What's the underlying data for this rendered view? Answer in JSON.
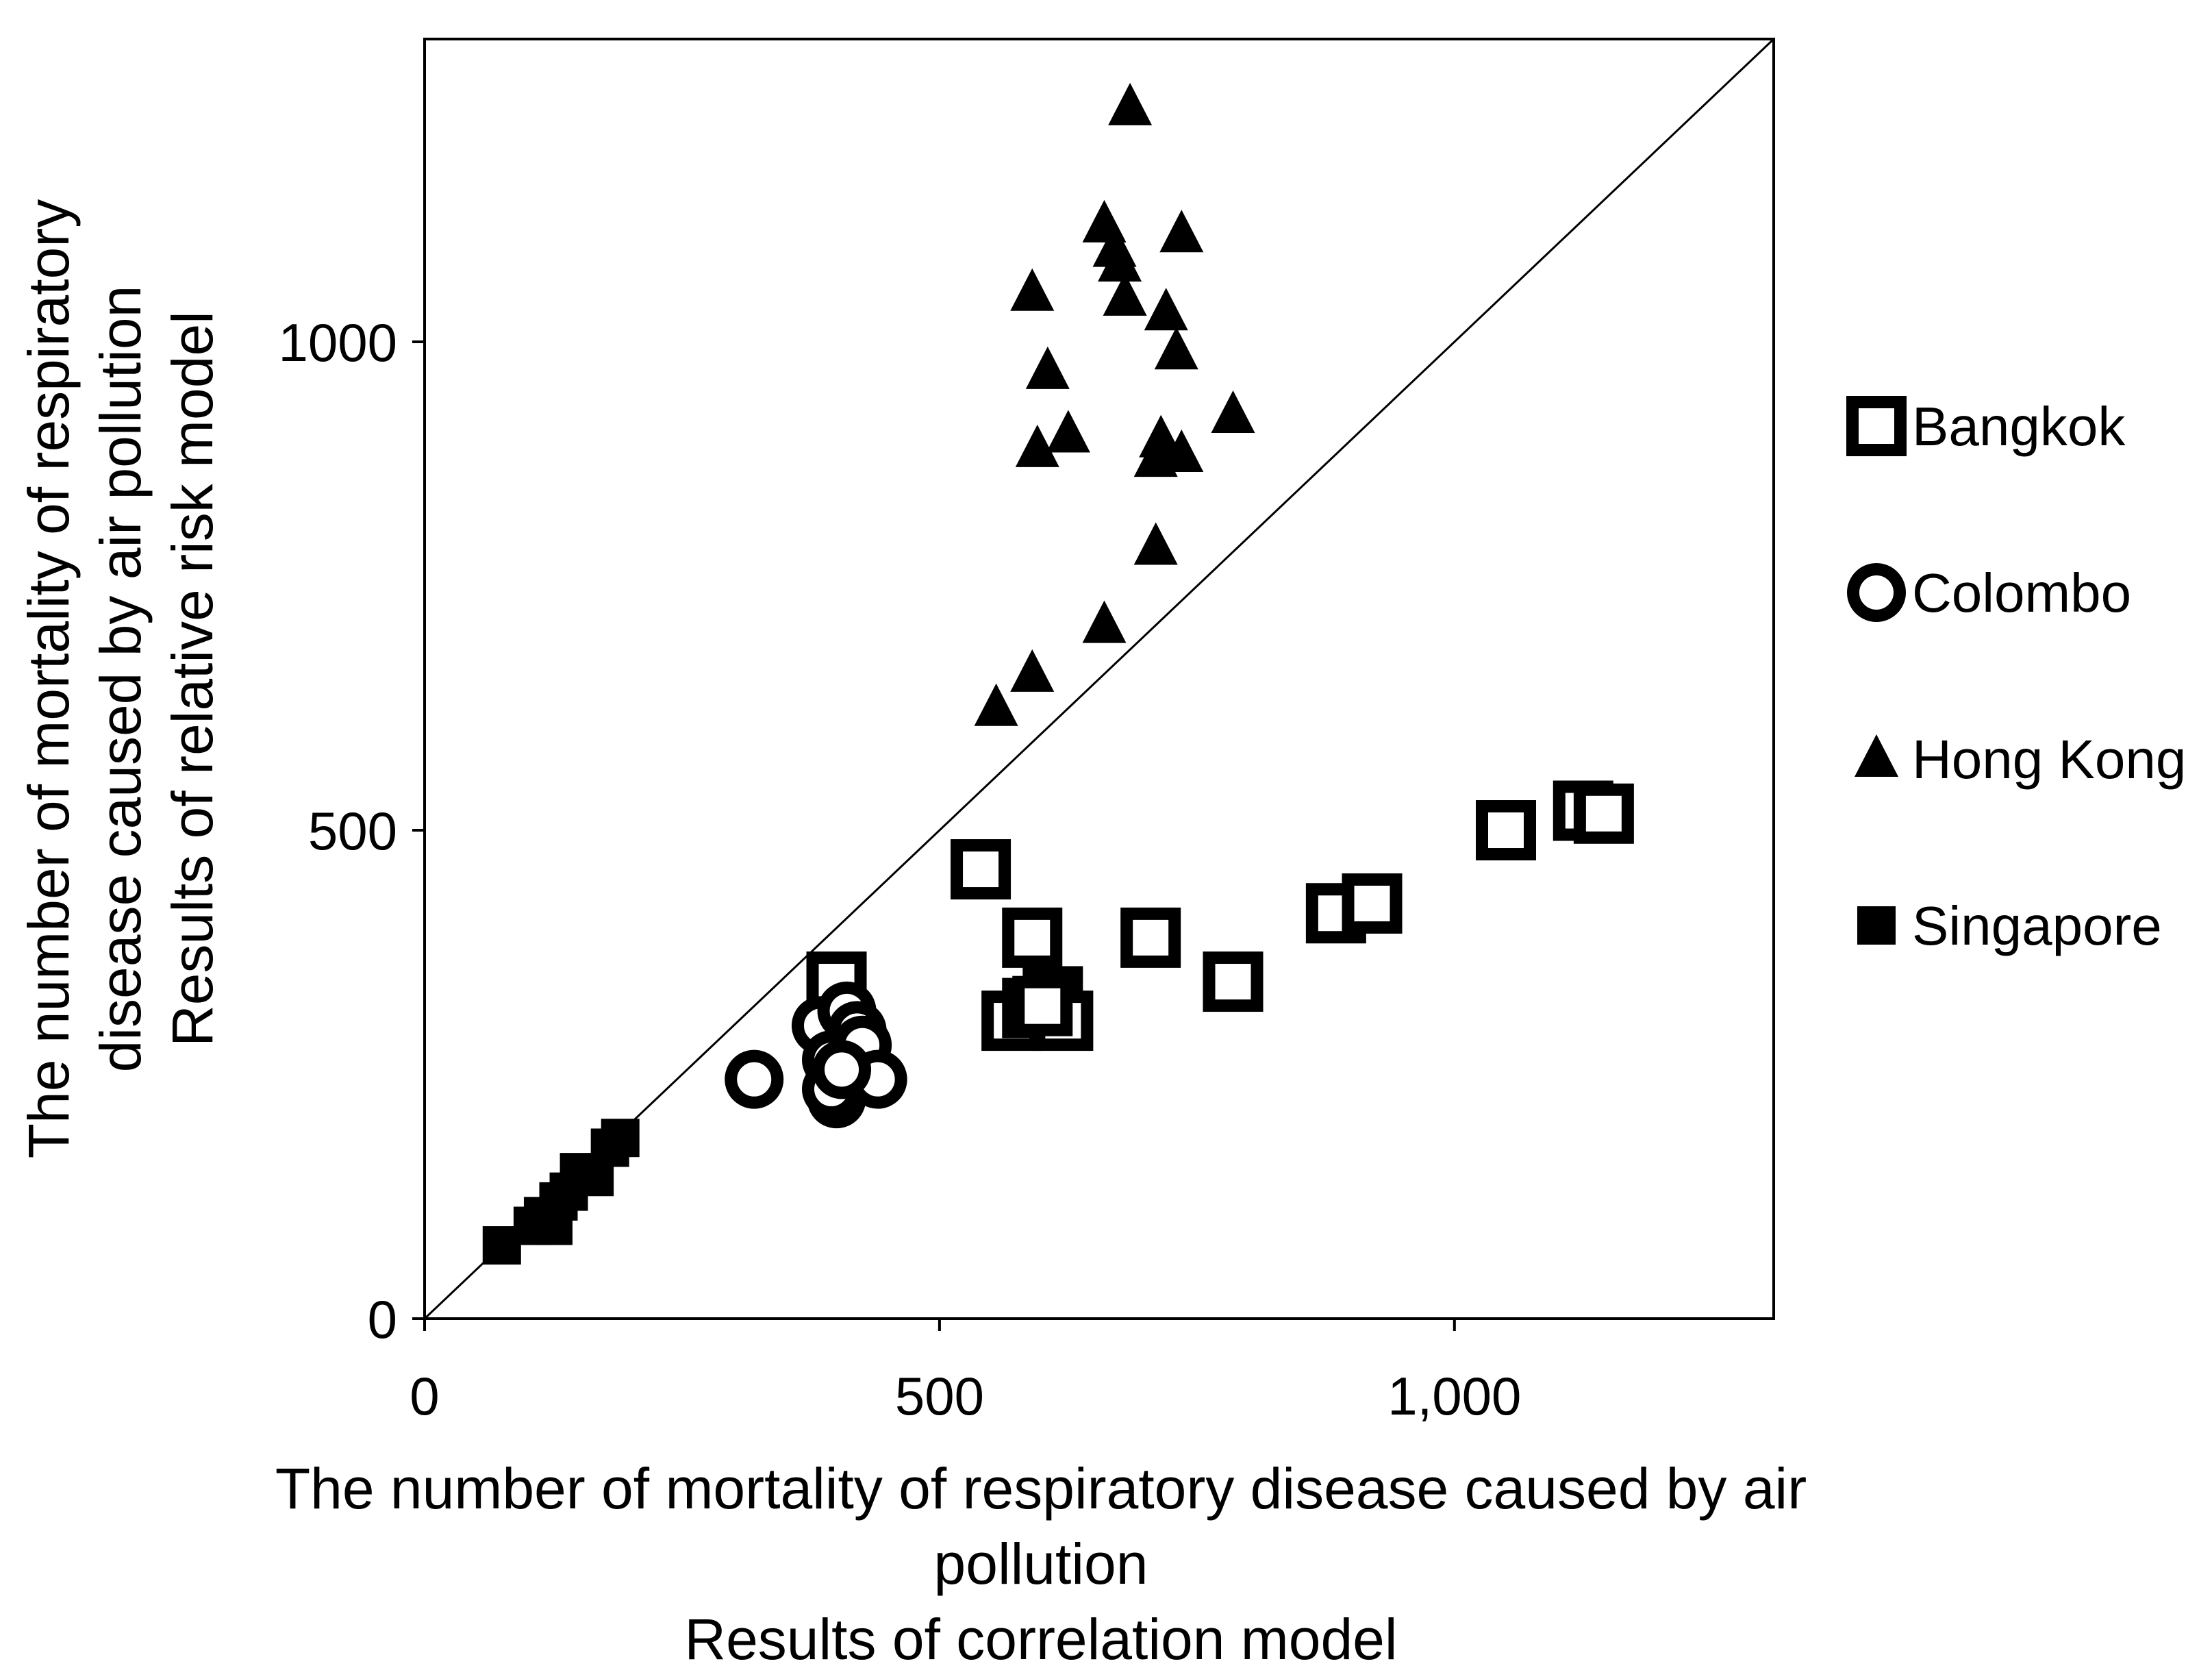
{
  "chart_data": {
    "type": "scatter",
    "xlabel_lines": [
      "The number of mortality of respiratory disease caused by air",
      "pollution",
      "Results of correlation model"
    ],
    "ylabel_lines": [
      "The number of mortality of respiratory",
      "disease caused by air pollution",
      "Results of relative risk model"
    ],
    "xlim": [
      0,
      1310
    ],
    "ylim": [
      0,
      1310
    ],
    "x_ticks": [
      {
        "value": 0,
        "label": "0"
      },
      {
        "value": 500,
        "label": "500"
      },
      {
        "value": 1000,
        "label": "1,000"
      }
    ],
    "y_ticks": [
      {
        "value": 0,
        "label": "0"
      },
      {
        "value": 500,
        "label": "500"
      },
      {
        "value": 1000,
        "label": "1000"
      }
    ],
    "reference_line": {
      "type": "y=x",
      "from": [
        0,
        0
      ],
      "to": [
        1310,
        1310
      ]
    },
    "grid": false,
    "legend_position": "right",
    "series": [
      {
        "name": "Bangkok",
        "marker": "hollow-square",
        "points": [
          [
            540,
            460
          ],
          [
            590,
            390
          ],
          [
            705,
            390
          ],
          [
            785,
            345
          ],
          [
            885,
            415
          ],
          [
            920,
            425
          ],
          [
            1050,
            500
          ],
          [
            1125,
            520
          ],
          [
            1145,
            517
          ],
          [
            570,
            305
          ],
          [
            590,
            318
          ],
          [
            610,
            330
          ],
          [
            620,
            305
          ],
          [
            400,
            345
          ],
          [
            600,
            320
          ]
        ]
      },
      {
        "name": "Colombo",
        "marker": "hollow-circle",
        "points": [
          [
            320,
            245
          ],
          [
            385,
            300
          ],
          [
            395,
            265
          ],
          [
            400,
            225
          ],
          [
            410,
            315
          ],
          [
            420,
            295
          ],
          [
            425,
            280
          ],
          [
            440,
            245
          ],
          [
            395,
            235
          ],
          [
            405,
            255
          ]
        ]
      },
      {
        "name": "Hong Kong",
        "marker": "triangle",
        "points": [
          [
            685,
            1240
          ],
          [
            660,
            1120
          ],
          [
            670,
            1095
          ],
          [
            735,
            1110
          ],
          [
            675,
            1080
          ],
          [
            590,
            1050
          ],
          [
            680,
            1045
          ],
          [
            720,
            1030
          ],
          [
            730,
            990
          ],
          [
            605,
            970
          ],
          [
            785,
            925
          ],
          [
            625,
            905
          ],
          [
            715,
            900
          ],
          [
            595,
            890
          ],
          [
            710,
            880
          ],
          [
            735,
            885
          ],
          [
            710,
            790
          ],
          [
            660,
            710
          ],
          [
            590,
            660
          ],
          [
            555,
            625
          ]
        ]
      },
      {
        "name": "Singapore",
        "marker": "filled-square",
        "points": [
          [
            75,
            75
          ],
          [
            105,
            95
          ],
          [
            115,
            105
          ],
          [
            125,
            95
          ],
          [
            130,
            120
          ],
          [
            140,
            130
          ],
          [
            150,
            150
          ],
          [
            165,
            145
          ],
          [
            180,
            175
          ],
          [
            190,
            185
          ]
        ]
      }
    ]
  }
}
